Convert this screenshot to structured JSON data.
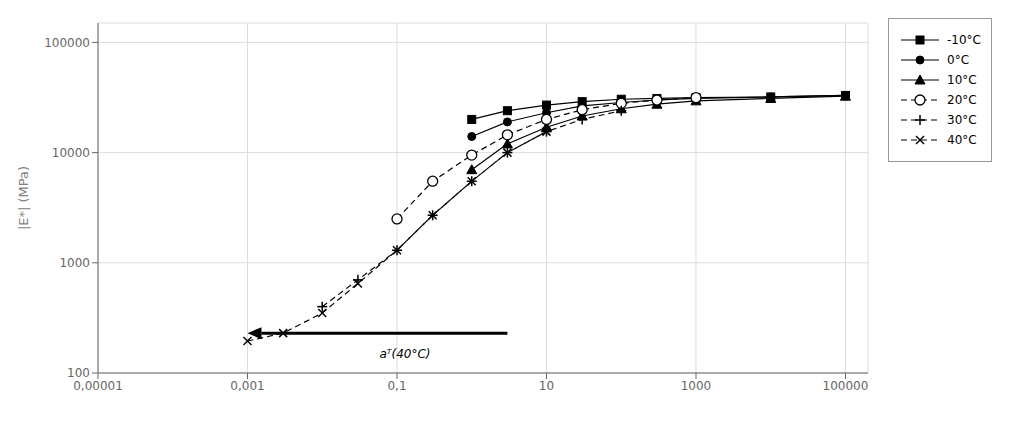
{
  "chart_data": {
    "type": "line",
    "ylabel": "|E*| (MPa)",
    "log": true,
    "grid": true,
    "legend": "right",
    "xlim": [
      1e-05,
      200000.0
    ],
    "ylim": [
      100,
      150000
    ],
    "xticks": [
      {
        "value": 1e-05,
        "label": "0,00001"
      },
      {
        "value": 0.001,
        "label": "0,001"
      },
      {
        "value": 0.1,
        "label": "0,1"
      },
      10,
      1000,
      100000
    ],
    "yticks": [
      100,
      1000,
      10000,
      100000
    ],
    "series": [
      {
        "name": "-10°C",
        "color": "black",
        "marker": "square",
        "line_style": "solid",
        "x": [
          1,
          3,
          10,
          30,
          100,
          300,
          1000,
          10000,
          100000
        ],
        "values": [
          20000,
          24000,
          27000,
          29000,
          30500,
          31000,
          31500,
          32000,
          33000
        ]
      },
      {
        "name": "0°C",
        "color": "black",
        "marker": "circle",
        "line_style": "solid",
        "x": [
          1,
          3,
          10,
          30,
          100,
          300,
          1000,
          10000,
          100000
        ],
        "values": [
          14000,
          19000,
          23000,
          26500,
          28500,
          30000,
          31000,
          32000,
          33000
        ]
      },
      {
        "name": "10°C",
        "color": "black",
        "marker": "triangle",
        "line_style": "solid",
        "x": [
          1,
          3,
          10,
          30,
          100,
          300,
          1000,
          10000,
          100000
        ],
        "values": [
          7000,
          12000,
          17000,
          21500,
          25000,
          27500,
          29500,
          31000,
          32500
        ]
      },
      {
        "name": "20°C",
        "color": "black",
        "marker": "open_circle",
        "line_style": "dashed",
        "x": [
          0.1,
          0.3,
          1,
          3,
          10,
          30,
          100,
          300,
          1000
        ],
        "values": [
          2500,
          5500,
          9500,
          14500,
          20000,
          24500,
          28000,
          30000,
          31500
        ]
      },
      {
        "name": "30°C",
        "color": "black",
        "marker": "plus",
        "line_style": "dashed",
        "x": [
          0.01,
          0.03,
          0.1,
          0.3,
          1,
          3,
          10,
          30,
          100
        ],
        "values": [
          400,
          700,
          1300,
          2700,
          5500,
          10000,
          15500,
          20000,
          24000
        ]
      },
      {
        "name": "40°C",
        "color": "black",
        "marker": "cross",
        "line_style": "dashed",
        "x": [
          0.001,
          0.003,
          0.01,
          0.03,
          0.1,
          0.3,
          1,
          3,
          10
        ],
        "values": [
          195,
          230,
          350,
          650,
          1300,
          2700,
          5500,
          10000,
          15500
        ]
      }
    ],
    "annotations": [
      {
        "text": "aᵀ(40°C)",
        "x": 0.05,
        "y": 148,
        "arrow": {
          "x_from": 3.0,
          "x_to": 0.001,
          "y": 230
        }
      }
    ]
  }
}
